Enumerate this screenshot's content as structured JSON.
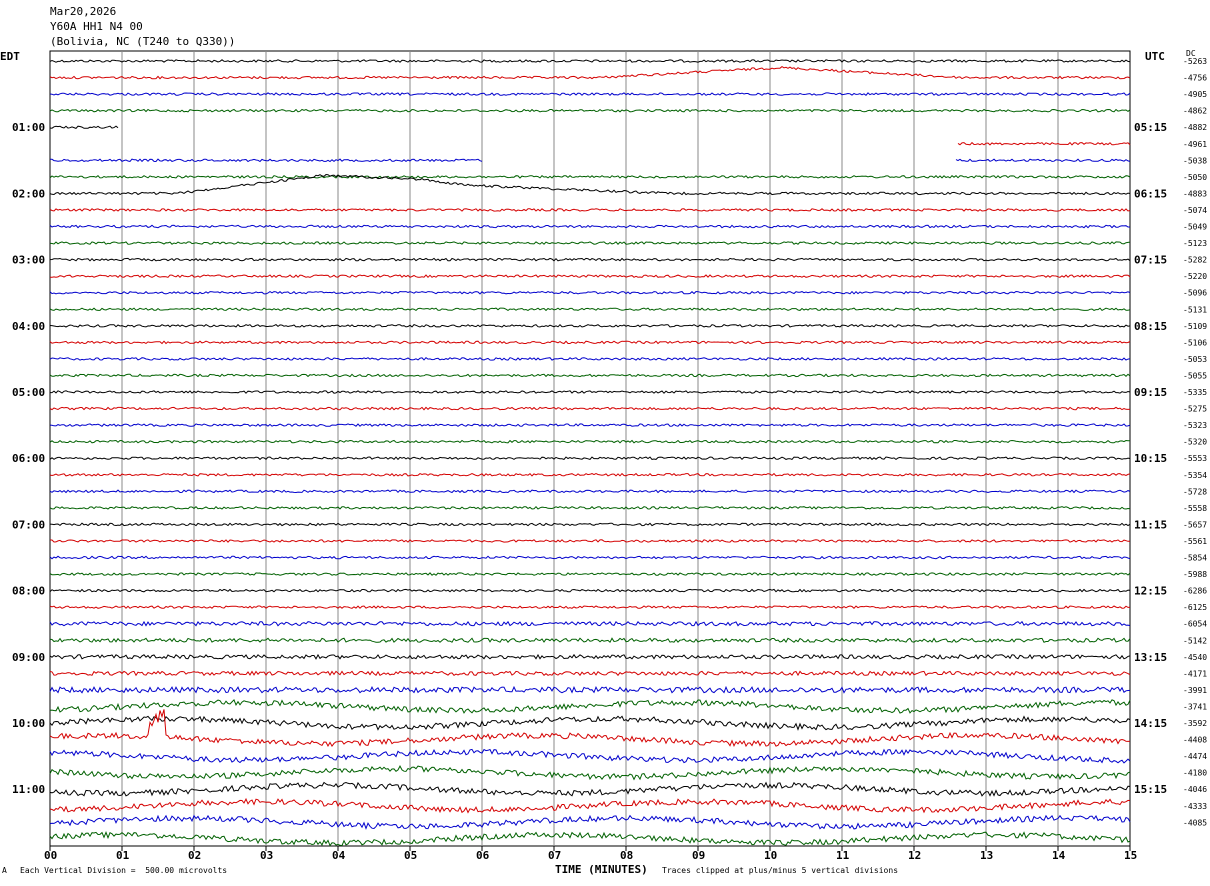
{
  "header": {
    "date": "Mar20,2026",
    "station": "Y60A HH1 N4 00",
    "location": "(Bolivia, NC (T240 to Q330))"
  },
  "labels": {
    "left_zone": "EDT",
    "right_zone": "UTC",
    "dc": "DC"
  },
  "footer": {
    "marker": "A",
    "division": "Each Vertical Division =  500.00 microvolts",
    "clipped": "Traces clipped at plus/minus 5 vertical divisions"
  },
  "colors": {
    "trace_cycle": [
      "#000000",
      "#d40000",
      "#0000cc",
      "#006000"
    ],
    "grid": "#888888"
  },
  "chart_data": {
    "type": "line",
    "xlabel": "TIME (MINUTES)",
    "xlim": [
      0,
      15
    ],
    "x_ticks": [
      "00",
      "01",
      "02",
      "03",
      "04",
      "05",
      "06",
      "07",
      "08",
      "09",
      "10",
      "11",
      "12",
      "13",
      "14",
      "15"
    ],
    "left_time_labels": [
      "01:00",
      "02:00",
      "03:00",
      "04:00",
      "05:00",
      "06:00",
      "07:00",
      "08:00",
      "09:00",
      "10:00",
      "11:00"
    ],
    "right_time_labels": [
      "05:15",
      "06:15",
      "07:15",
      "08:15",
      "09:15",
      "10:15",
      "11:15",
      "12:15",
      "13:15",
      "14:15",
      "15:15"
    ],
    "trace_count": 48,
    "dc_offsets": [
      "-5263",
      "-4756",
      "-4905",
      "-4862",
      "-4882",
      "-4961",
      "-5038",
      "-5050",
      "-4883",
      "-5074",
      "-5049",
      "-5123",
      "-5282",
      "-5220",
      "-5096",
      "-5131",
      "-5109",
      "-5106",
      "-5053",
      "-5055",
      "-5335",
      "-5275",
      "-5323",
      "-5320",
      "-5553",
      "-5354",
      "-5728",
      "-5558",
      "-5657",
      "-5561",
      "-5854",
      "-5988",
      "-6286",
      "-6125",
      "-6054",
      "-5142",
      "-4540",
      "-4171",
      "-3991",
      "-3741",
      "-3592",
      "-4408",
      "-4474",
      "-4180",
      "-4046",
      "-4333",
      "-4085"
    ]
  }
}
